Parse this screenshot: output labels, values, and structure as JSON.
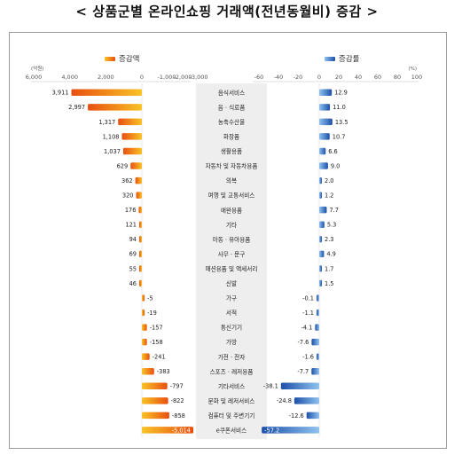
{
  "title": "< 상품군별 온라인쇼핑 거래액(전년동월비) 증감 >",
  "colors": {
    "amount_bar_dark": "#e84f10",
    "amount_bar_light": "#f9c326",
    "rate_bar_dark": "#1c4fa8",
    "rate_bar_light": "#8fc2ee",
    "center_band": "#eeeeee",
    "axis_text": "#555555"
  },
  "legend": {
    "amount": "증감액",
    "rate": "증감률"
  },
  "chart_data": [
    {
      "type": "bar",
      "orientation": "horizontal",
      "series": [
        {
          "name": "증감액",
          "values": [
            3911,
            2997,
            1317,
            1108,
            1037,
            629,
            362,
            320,
            176,
            121,
            94,
            69,
            55,
            46,
            -5,
            -19,
            -157,
            -158,
            -241,
            -383,
            -797,
            -822,
            -858,
            -5014
          ]
        }
      ],
      "value_labels": [
        "3,911",
        "2,997",
        "1,317",
        "1,108",
        "1,037",
        "629",
        "362",
        "320",
        "176",
        "121",
        "94",
        "69",
        "55",
        "46",
        "-5",
        "-19",
        "-157",
        "-158",
        "-241",
        "-383",
        "-797",
        "-822",
        "-858",
        "-5,014"
      ],
      "categories": [
        "음식서비스",
        "음 · 식료품",
        "농축수산물",
        "화장품",
        "생활용품",
        "자동차 및 자동차용품",
        "의복",
        "여행 및 교통서비스",
        "애완용품",
        "기타",
        "아동 · 유아용품",
        "사무 · 문구",
        "패션용품 및 액세서리",
        "신발",
        "가구",
        "서적",
        "통신기기",
        "가방",
        "가전 · 전자",
        "스포츠 · 레저용품",
        "기타서비스",
        "문화 및 레저서비스",
        "컴퓨터 및 주변기기",
        "e쿠폰서비스"
      ],
      "unit_label": "(억원)",
      "ticks_positive": [
        "6,000",
        "4,000",
        "2,000",
        "0"
      ],
      "ticks_negative": [
        "-1,000",
        "-2,000",
        "-3,000"
      ],
      "xlim_positive": [
        0,
        6000
      ],
      "xlim_negative": [
        -3000,
        0
      ],
      "legend_position": "top-left"
    },
    {
      "type": "bar",
      "orientation": "horizontal",
      "series": [
        {
          "name": "증감률",
          "values": [
            12.9,
            11.0,
            13.5,
            10.7,
            6.6,
            9.0,
            2.0,
            1.2,
            7.7,
            5.3,
            2.3,
            4.9,
            1.7,
            1.5,
            -0.1,
            -1.1,
            -4.1,
            -7.6,
            -1.6,
            -7.7,
            -38.1,
            -24.8,
            -12.6,
            -57.2
          ]
        }
      ],
      "value_labels": [
        "12.9",
        "11.0",
        "13.5",
        "10.7",
        "6.6",
        "9.0",
        "2.0",
        "1.2",
        "7.7",
        "5.3",
        "2.3",
        "4.9",
        "1.7",
        "1.5",
        "-0.1",
        "-1.1",
        "-4.1",
        "-7.6",
        "-1.6",
        "-7.7",
        "-38.1",
        "-24.8",
        "-12.6",
        "-57.2"
      ],
      "categories": [
        "음식서비스",
        "음 · 식료품",
        "농축수산물",
        "화장품",
        "생활용품",
        "자동차 및 자동차용품",
        "의복",
        "여행 및 교통서비스",
        "애완용품",
        "기타",
        "아동 · 유아용품",
        "사무 · 문구",
        "패션용품 및 액세서리",
        "신발",
        "가구",
        "서적",
        "통신기기",
        "가방",
        "가전 · 전자",
        "스포츠 · 레저용품",
        "기타서비스",
        "문화 및 레저서비스",
        "컴퓨터 및 주변기기",
        "e쿠폰서비스"
      ],
      "unit_label": "(%)",
      "ticks_negative": [
        "-60",
        "-40",
        "-20"
      ],
      "ticks_positive": [
        "0",
        "20",
        "40",
        "60",
        "80",
        "100"
      ],
      "xlim": [
        -60,
        100
      ],
      "legend_position": "top-right"
    }
  ]
}
